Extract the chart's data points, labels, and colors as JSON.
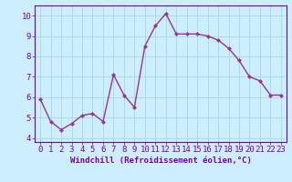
{
  "x": [
    0,
    1,
    2,
    3,
    4,
    5,
    6,
    7,
    8,
    9,
    10,
    11,
    12,
    13,
    14,
    15,
    16,
    17,
    18,
    19,
    20,
    21,
    22,
    23
  ],
  "y": [
    5.9,
    4.8,
    4.4,
    4.7,
    5.1,
    5.2,
    4.8,
    7.1,
    6.1,
    5.5,
    8.5,
    9.5,
    10.1,
    9.1,
    9.1,
    9.1,
    9.0,
    8.8,
    8.4,
    7.8,
    7.0,
    6.8,
    6.1,
    6.1
  ],
  "line_color": "#993399",
  "marker": "D",
  "marker_size": 2.0,
  "bg_color": "#cceeff",
  "grid_color": "#aadddd",
  "xlabel": "Windchill (Refroidissement éolien,°C)",
  "ylim": [
    3.8,
    10.5
  ],
  "xlim": [
    -0.5,
    23.5
  ],
  "yticks": [
    4,
    5,
    6,
    7,
    8,
    9,
    10
  ],
  "xticks": [
    0,
    1,
    2,
    3,
    4,
    5,
    6,
    7,
    8,
    9,
    10,
    11,
    12,
    13,
    14,
    15,
    16,
    17,
    18,
    19,
    20,
    21,
    22,
    23
  ],
  "xlabel_fontsize": 6.5,
  "tick_fontsize": 6.5,
  "axis_label_color": "#7700aa",
  "border_color": "#7700aa",
  "line_width": 1.0
}
